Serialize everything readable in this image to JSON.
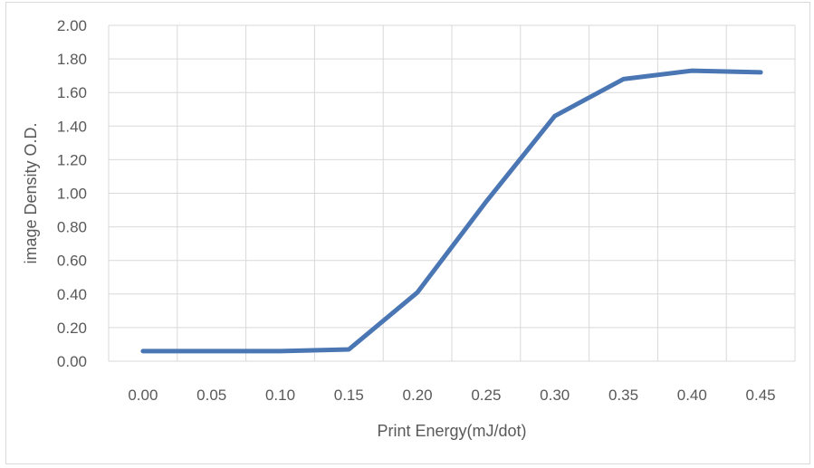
{
  "chart_data": {
    "type": "line",
    "title": "",
    "xlabel": "Print Energy(mJ/dot)",
    "ylabel": "image Density O.D.",
    "x_ticks": [
      "0.00",
      "0.05",
      "0.10",
      "0.15",
      "0.20",
      "0.25",
      "0.30",
      "0.35",
      "0.40",
      "0.45"
    ],
    "y_ticks": [
      "0.00",
      "0.20",
      "0.40",
      "0.60",
      "0.80",
      "1.00",
      "1.20",
      "1.40",
      "1.60",
      "1.80",
      "2.00"
    ],
    "ylim": [
      0,
      2
    ],
    "grid": true,
    "legend": "none",
    "series": [
      {
        "color": "#4a76b4",
        "x": [
          0.0,
          0.05,
          0.1,
          0.15,
          0.2,
          0.25,
          0.3,
          0.35,
          0.4,
          0.45
        ],
        "y": [
          0.06,
          0.06,
          0.06,
          0.07,
          0.41,
          0.95,
          1.46,
          1.68,
          1.73,
          1.72
        ]
      }
    ],
    "gridline_color": "#d9d9d9"
  }
}
